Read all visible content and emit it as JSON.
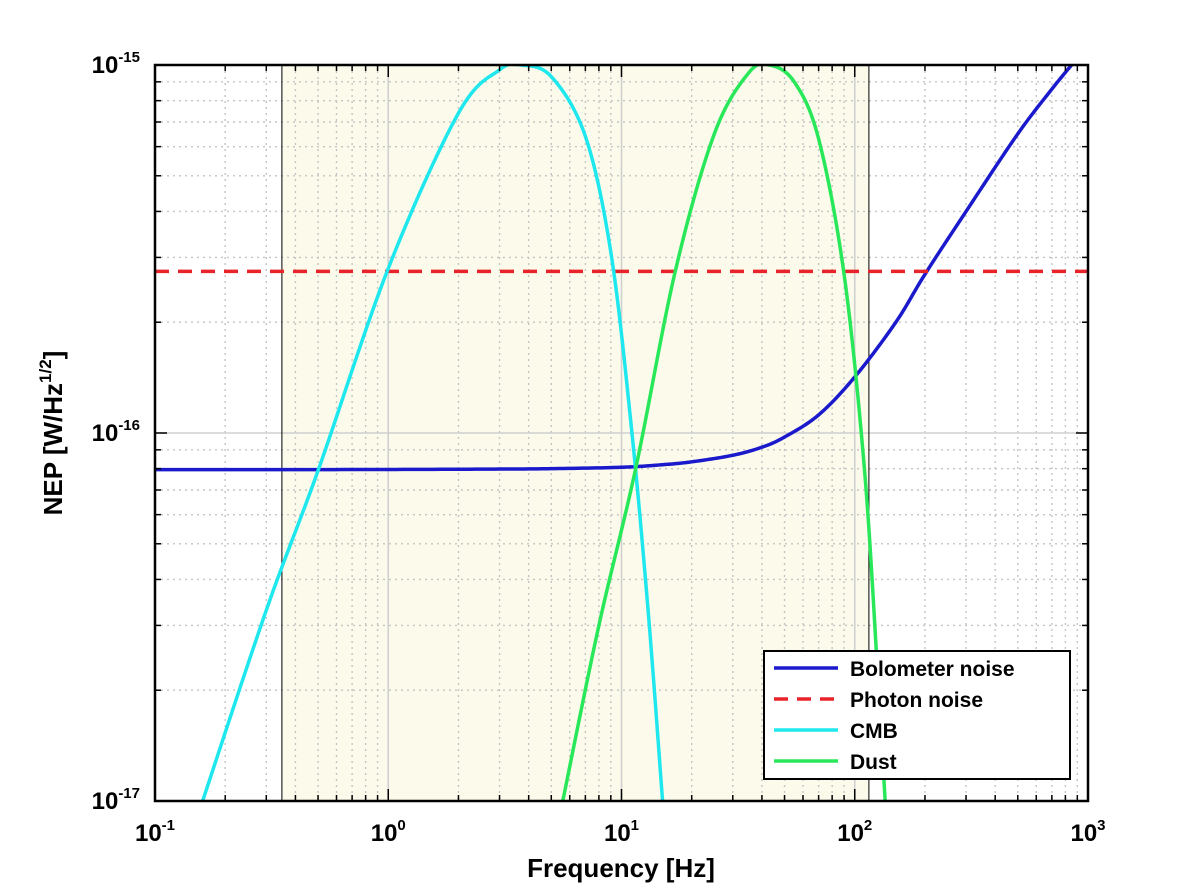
{
  "chart_data": {
    "type": "line",
    "xscale": "log",
    "yscale": "log",
    "xlim": [
      0.1,
      1000
    ],
    "ylim": [
      1e-17,
      1e-15
    ],
    "grid": true,
    "minor_grid": true,
    "xlabel": "Frequency [Hz]",
    "ylabel": {
      "base": "NEP [W/Hz",
      "sup": "1/2",
      "close": "]"
    },
    "x_ticks": [
      {
        "base": "10",
        "exp": "-1",
        "value": 0.1
      },
      {
        "base": "10",
        "exp": "0",
        "value": 1
      },
      {
        "base": "10",
        "exp": "1",
        "value": 10
      },
      {
        "base": "10",
        "exp": "2",
        "value": 100
      },
      {
        "base": "10",
        "exp": "3",
        "value": 1000
      }
    ],
    "y_ticks": [
      {
        "base": "10",
        "exp": "-17",
        "value": 1e-17
      },
      {
        "base": "10",
        "exp": "-16",
        "value": 1e-16
      },
      {
        "base": "10",
        "exp": "-15",
        "value": 1e-15
      }
    ],
    "shaded_band": {
      "x_start": 0.35,
      "x_end": 115,
      "color": "#fbfaeb"
    },
    "vertical_lines": [
      0.35,
      115
    ],
    "legend_position": "bottom-right",
    "series": [
      {
        "name": "Bolometer noise",
        "color": "#1a1acc",
        "style": "solid",
        "x": [
          0.1,
          0.3,
          1,
          3,
          5,
          10,
          15,
          20,
          30,
          40,
          50,
          70,
          100,
          150,
          200,
          300,
          500,
          700,
          850
        ],
        "y": [
          7.95e-17,
          7.95e-17,
          7.96e-17,
          7.98e-17,
          8e-17,
          8.07e-17,
          8.2e-17,
          8.35e-17,
          8.7e-17,
          9.15e-17,
          9.75e-17,
          1.12e-16,
          1.42e-16,
          2e-16,
          2.7e-16,
          4e-16,
          6.5e-16,
          8.6e-16,
          1e-15
        ]
      },
      {
        "name": "Photon noise",
        "color": "#e8242a",
        "style": "dashed",
        "x": [
          0.1,
          1000
        ],
        "y": [
          2.75e-16,
          2.75e-16
        ]
      },
      {
        "name": "CMB",
        "color": "#1ee8ee",
        "style": "solid",
        "x": [
          0.16,
          0.3,
          0.5,
          1,
          2,
          3,
          3.7,
          5,
          7,
          9,
          11,
          13,
          15
        ],
        "y": [
          1e-17,
          3.3e-17,
          7.9e-17,
          2.8e-16,
          7.4e-16,
          9.7e-16,
          1e-15,
          9.3e-16,
          6.4e-16,
          3.1e-16,
          1.05e-16,
          3.3e-17,
          1e-17
        ]
      },
      {
        "name": "Dust",
        "color": "#28e85a",
        "style": "solid",
        "x": [
          5.6,
          8,
          11.5,
          17,
          25,
          35,
          43,
          55,
          70,
          90,
          110,
          125,
          135
        ],
        "y": [
          1e-17,
          3e-17,
          8e-17,
          2.75e-16,
          6.5e-16,
          9.5e-16,
          1e-15,
          9e-16,
          6.3e-16,
          2.7e-16,
          8e-17,
          2.3e-17,
          1e-17
        ]
      }
    ]
  }
}
